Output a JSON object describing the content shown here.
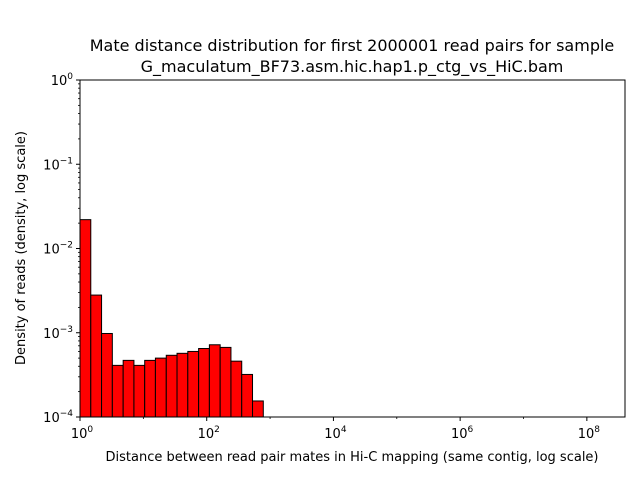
{
  "chart_data": {
    "type": "bar",
    "title_line1": "Mate distance distribution for first 2000001 read pairs for sample",
    "title_line2": "G_maculatum_BF73.asm.hic.hap1.p_ctg_vs_HiC.bam",
    "xlabel": "Distance between read pair mates in Hi-C mapping (same contig, log scale)",
    "ylabel": "Density of reads (density, log scale)",
    "x_scale": "log",
    "y_scale": "log",
    "xlim": [
      1,
      400000000
    ],
    "ylim": [
      0.0001,
      1
    ],
    "grid": false,
    "legend": "none",
    "bar_color": "#ff0000",
    "edge_color": "#000000",
    "x_ticks": [
      {
        "value": 1,
        "base": "10",
        "exp": "0"
      },
      {
        "value": 100,
        "base": "10",
        "exp": "2"
      },
      {
        "value": 10000,
        "base": "10",
        "exp": "4"
      },
      {
        "value": 1000000,
        "base": "10",
        "exp": "6"
      },
      {
        "value": 100000000,
        "base": "10",
        "exp": "8"
      }
    ],
    "y_ticks": [
      {
        "value": 0.0001,
        "base": "10",
        "exp": "−4"
      },
      {
        "value": 0.001,
        "base": "10",
        "exp": "−3"
      },
      {
        "value": 0.01,
        "base": "10",
        "exp": "−2"
      },
      {
        "value": 0.1,
        "base": "10",
        "exp": "−1"
      },
      {
        "value": 1,
        "base": "10",
        "exp": "0"
      }
    ],
    "bins": [
      {
        "x0": 1.0,
        "x1": 1.48,
        "value": 0.022
      },
      {
        "x0": 1.48,
        "x1": 2.19,
        "value": 0.0028
      },
      {
        "x0": 2.19,
        "x1": 3.24,
        "value": 0.00098
      },
      {
        "x0": 3.24,
        "x1": 4.8,
        "value": 0.00041
      },
      {
        "x0": 4.8,
        "x1": 7.1,
        "value": 0.00047
      },
      {
        "x0": 7.1,
        "x1": 10.5,
        "value": 0.00041
      },
      {
        "x0": 10.5,
        "x1": 15.5,
        "value": 0.00047
      },
      {
        "x0": 15.5,
        "x1": 23.0,
        "value": 0.0005
      },
      {
        "x0": 23.0,
        "x1": 34.0,
        "value": 0.00054
      },
      {
        "x0": 34.0,
        "x1": 50.3,
        "value": 0.00057
      },
      {
        "x0": 50.3,
        "x1": 74.5,
        "value": 0.0006
      },
      {
        "x0": 74.5,
        "x1": 110.2,
        "value": 0.00065
      },
      {
        "x0": 110.2,
        "x1": 163.0,
        "value": 0.00072
      },
      {
        "x0": 163.0,
        "x1": 241.3,
        "value": 0.00067
      },
      {
        "x0": 241.3,
        "x1": 357.0,
        "value": 0.00046
      },
      {
        "x0": 357.0,
        "x1": 528.4,
        "value": 0.00032
      },
      {
        "x0": 528.4,
        "x1": 782.0,
        "value": 0.000155
      }
    ]
  }
}
